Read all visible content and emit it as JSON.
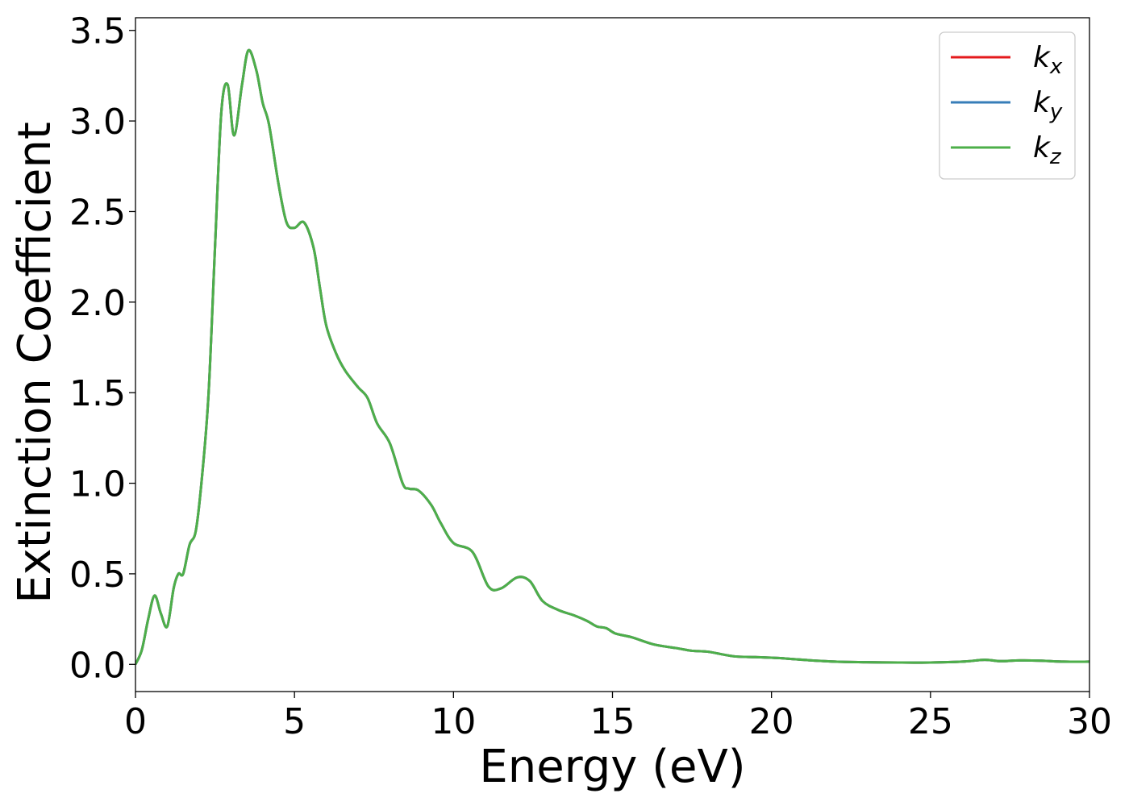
{
  "chart_data": {
    "type": "line",
    "title": "",
    "xlabel": "Energy (eV)",
    "ylabel": "Extinction Coefficient",
    "xlim": [
      0,
      30
    ],
    "ylim": [
      -0.15,
      3.57
    ],
    "xticks": [
      0,
      5,
      10,
      15,
      20,
      25,
      30
    ],
    "xtick_labels": [
      "0",
      "5",
      "10",
      "15",
      "20",
      "25",
      "30"
    ],
    "yticks": [
      0.0,
      0.5,
      1.0,
      1.5,
      2.0,
      2.5,
      3.0,
      3.5
    ],
    "ytick_labels": [
      "0.0",
      "0.5",
      "1.0",
      "1.5",
      "2.0",
      "2.5",
      "3.0",
      "3.5"
    ],
    "grid": false,
    "legend": {
      "placement": "top-right",
      "entries": [
        {
          "base": "k",
          "sub": "x",
          "color": "#e41a1c"
        },
        {
          "base": "k",
          "sub": "y",
          "color": "#377eb8"
        },
        {
          "base": "k",
          "sub": "z",
          "color": "#4daf4a"
        }
      ]
    },
    "x": [
      0,
      0.2,
      0.4,
      0.6,
      0.8,
      1.0,
      1.2,
      1.35,
      1.5,
      1.7,
      1.9,
      2.1,
      2.3,
      2.5,
      2.7,
      2.9,
      3.1,
      3.35,
      3.55,
      3.8,
      4.0,
      4.2,
      4.5,
      4.75,
      5.0,
      5.3,
      5.6,
      5.8,
      6.0,
      6.3,
      6.6,
      7.0,
      7.3,
      7.6,
      8.0,
      8.4,
      8.6,
      8.9,
      9.3,
      9.6,
      10.0,
      10.6,
      11.1,
      11.5,
      12.0,
      12.4,
      12.8,
      13.3,
      13.8,
      14.2,
      14.5,
      14.8,
      15.1,
      15.6,
      16.3,
      17.0,
      17.5,
      18.0,
      18.8,
      19.5,
      20.2,
      21.0,
      22.0,
      23.0,
      24.0,
      25.0,
      26.0,
      26.7,
      27.2,
      27.8,
      28.5,
      29.2,
      30.0
    ],
    "series": [
      {
        "name": "kx",
        "color": "#e41a1c",
        "values": [
          0.0,
          0.08,
          0.25,
          0.38,
          0.28,
          0.21,
          0.42,
          0.5,
          0.5,
          0.66,
          0.74,
          1.05,
          1.5,
          2.3,
          3.05,
          3.2,
          2.92,
          3.2,
          3.39,
          3.28,
          3.1,
          2.98,
          2.65,
          2.44,
          2.41,
          2.44,
          2.3,
          2.08,
          1.87,
          1.72,
          1.62,
          1.53,
          1.47,
          1.33,
          1.22,
          1.0,
          0.97,
          0.96,
          0.88,
          0.78,
          0.67,
          0.62,
          0.43,
          0.42,
          0.48,
          0.46,
          0.35,
          0.3,
          0.27,
          0.24,
          0.21,
          0.2,
          0.17,
          0.15,
          0.11,
          0.09,
          0.075,
          0.07,
          0.045,
          0.04,
          0.035,
          0.025,
          0.015,
          0.012,
          0.01,
          0.01,
          0.015,
          0.025,
          0.018,
          0.022,
          0.02,
          0.015,
          0.015
        ]
      },
      {
        "name": "ky",
        "color": "#377eb8",
        "values": [
          0.0,
          0.08,
          0.25,
          0.38,
          0.28,
          0.21,
          0.42,
          0.5,
          0.5,
          0.66,
          0.74,
          1.05,
          1.5,
          2.3,
          3.05,
          3.2,
          2.92,
          3.2,
          3.39,
          3.28,
          3.1,
          2.98,
          2.65,
          2.44,
          2.41,
          2.44,
          2.3,
          2.08,
          1.87,
          1.72,
          1.62,
          1.53,
          1.47,
          1.33,
          1.22,
          1.0,
          0.97,
          0.96,
          0.88,
          0.78,
          0.67,
          0.62,
          0.43,
          0.42,
          0.48,
          0.46,
          0.35,
          0.3,
          0.27,
          0.24,
          0.21,
          0.2,
          0.17,
          0.15,
          0.11,
          0.09,
          0.075,
          0.07,
          0.045,
          0.04,
          0.035,
          0.025,
          0.015,
          0.012,
          0.01,
          0.01,
          0.015,
          0.025,
          0.018,
          0.022,
          0.02,
          0.015,
          0.015
        ]
      },
      {
        "name": "kz",
        "color": "#4daf4a",
        "values": [
          0.0,
          0.08,
          0.25,
          0.38,
          0.28,
          0.21,
          0.42,
          0.5,
          0.5,
          0.66,
          0.74,
          1.05,
          1.5,
          2.3,
          3.05,
          3.2,
          2.92,
          3.2,
          3.39,
          3.28,
          3.1,
          2.98,
          2.65,
          2.44,
          2.41,
          2.44,
          2.3,
          2.08,
          1.87,
          1.72,
          1.62,
          1.53,
          1.47,
          1.33,
          1.22,
          1.0,
          0.97,
          0.96,
          0.88,
          0.78,
          0.67,
          0.62,
          0.43,
          0.42,
          0.48,
          0.46,
          0.35,
          0.3,
          0.27,
          0.24,
          0.21,
          0.2,
          0.17,
          0.15,
          0.11,
          0.09,
          0.075,
          0.07,
          0.045,
          0.04,
          0.035,
          0.025,
          0.015,
          0.012,
          0.01,
          0.01,
          0.015,
          0.025,
          0.018,
          0.022,
          0.02,
          0.015,
          0.015
        ]
      }
    ]
  }
}
